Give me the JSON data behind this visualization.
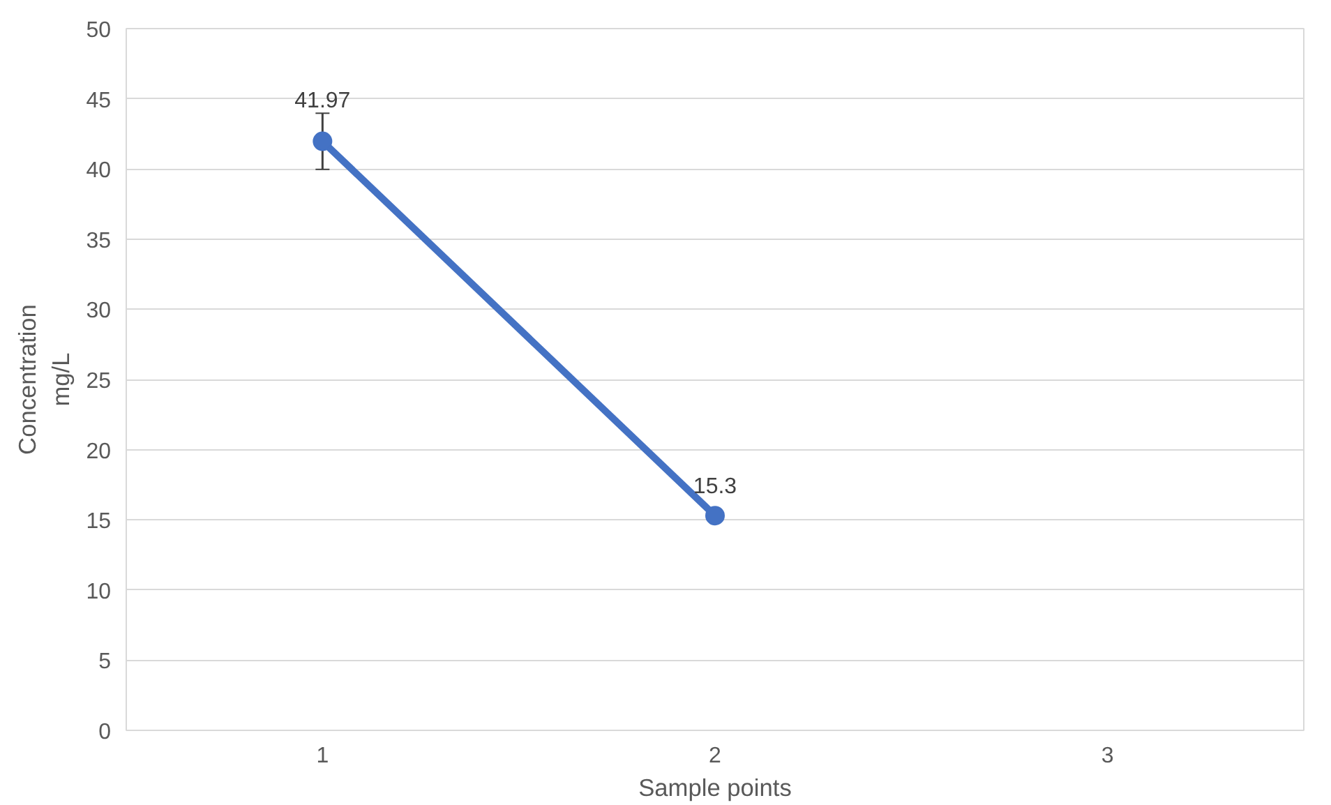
{
  "chart_data": {
    "type": "line",
    "xlabel": "Sample points",
    "ylabel": "Concentration\nmg/L",
    "categories": [
      "1",
      "2",
      "3"
    ],
    "series": [
      {
        "color": "#4472c4",
        "values": [
          41.97,
          15.3,
          null
        ],
        "errors": [
          2,
          null,
          null
        ],
        "value_labels": [
          "41.97",
          "15.3",
          null
        ]
      }
    ],
    "ylim": [
      0,
      50
    ],
    "yticks": [
      0,
      5,
      10,
      15,
      20,
      25,
      30,
      35,
      40,
      45,
      50
    ],
    "grid": "y",
    "marker": "circle"
  }
}
